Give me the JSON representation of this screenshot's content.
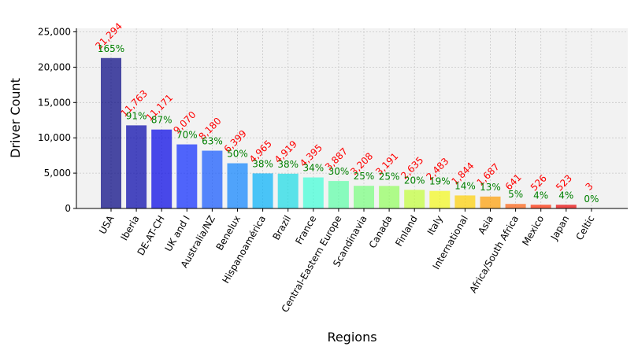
{
  "chart_data": {
    "type": "bar",
    "xlabel": "Regions",
    "ylabel": "Driver Count",
    "ylim": [
      0,
      25500
    ],
    "yticks": [
      0,
      5000,
      10000,
      15000,
      20000,
      25000
    ],
    "ytick_labels": [
      "0",
      "5,000",
      "10,000",
      "15,000",
      "20,000",
      "25,000"
    ],
    "grid": true,
    "categories": [
      "USA",
      "Iberia",
      "DE-AT-CH",
      "UK and I",
      "Australia/NZ",
      "Benelux",
      "Hispanoamérica",
      "Brazil",
      "France",
      "Central-Eastern Europe",
      "Scandinavia",
      "Canada",
      "Finland",
      "Italy",
      "International",
      "Asia",
      "Africa/South Africa",
      "Mexico",
      "Japan",
      "Celtic"
    ],
    "values": [
      21294,
      11763,
      11171,
      9070,
      8180,
      6399,
      4965,
      4919,
      4395,
      3887,
      3208,
      3191,
      2635,
      2483,
      1844,
      1687,
      641,
      526,
      523,
      3
    ],
    "value_labels": [
      "21,294",
      "11,763",
      "11,171",
      "9,070",
      "8,180",
      "6,399",
      "4,965",
      "4,919",
      "4,395",
      "3,887",
      "3,208",
      "3,191",
      "2,635",
      "2,483",
      "1,844",
      "1,687",
      "641",
      "526",
      "523",
      "3"
    ],
    "percent_labels": [
      "165%",
      "91%",
      "87%",
      "70%",
      "63%",
      "50%",
      "38%",
      "38%",
      "34%",
      "30%",
      "25%",
      "25%",
      "20%",
      "19%",
      "14%",
      "13%",
      "5%",
      "4%",
      "4%",
      "0%"
    ],
    "colors": [
      "#000080",
      "#0000aa",
      "#0000e6",
      "#0a28ff",
      "#0f55ff",
      "#0a82ff",
      "#02b0f9",
      "#18dce6",
      "#3dffd7",
      "#5bffa7",
      "#77ff7e",
      "#92ff5d",
      "#c2ff38",
      "#f3f91a",
      "#ffd001",
      "#ff9c00",
      "#ff5f0e",
      "#ff2a00",
      "#ea0000",
      "#c20000"
    ],
    "bar_opacity": 0.7
  }
}
